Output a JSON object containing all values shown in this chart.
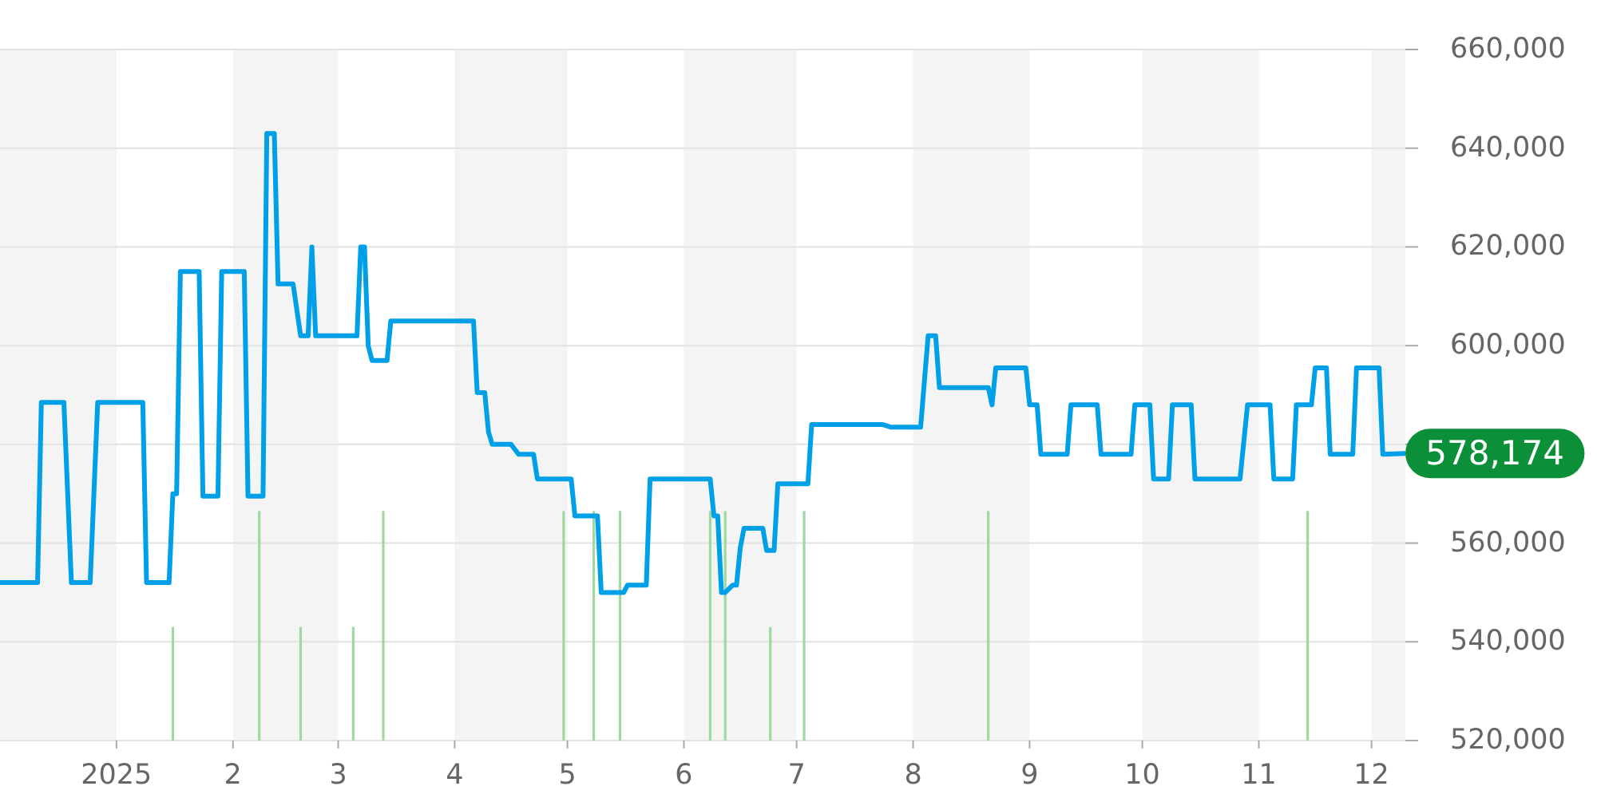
{
  "chart_data": {
    "type": "line",
    "xlim": [
      "2024-12-01",
      "2025-12-10"
    ],
    "ylim": [
      520000,
      660000
    ],
    "xticks": [
      {
        "value": "2025-01-01",
        "label": "2025"
      },
      {
        "value": "2025-02-01",
        "label": "2"
      },
      {
        "value": "2025-03-01",
        "label": "3"
      },
      {
        "value": "2025-04-01",
        "label": "4"
      },
      {
        "value": "2025-05-01",
        "label": "5"
      },
      {
        "value": "2025-06-01",
        "label": "6"
      },
      {
        "value": "2025-07-01",
        "label": "7"
      },
      {
        "value": "2025-08-01",
        "label": "8"
      },
      {
        "value": "2025-09-01",
        "label": "9"
      },
      {
        "value": "2025-10-01",
        "label": "10"
      },
      {
        "value": "2025-11-01",
        "label": "11"
      },
      {
        "value": "2025-12-01",
        "label": "12"
      }
    ],
    "yticks": [
      {
        "value": 520000,
        "label": "520,000"
      },
      {
        "value": 540000,
        "label": "540,000"
      },
      {
        "value": 560000,
        "label": "560,000"
      },
      {
        "value": 580000,
        "label": null
      },
      {
        "value": 600000,
        "label": "600,000"
      },
      {
        "value": 620000,
        "label": "620,000"
      },
      {
        "value": 640000,
        "label": "640,000"
      },
      {
        "value": 660000,
        "label": "660,000"
      }
    ],
    "grid": "y",
    "bands": [
      {
        "axis": "x",
        "from": "2024-12-01",
        "to": "2025-01-01",
        "color": "#f4f4f4"
      },
      {
        "axis": "x",
        "from": "2025-02-01",
        "to": "2025-03-01",
        "color": "#f4f4f4"
      },
      {
        "axis": "x",
        "from": "2025-04-01",
        "to": "2025-05-01",
        "color": "#f4f4f4"
      },
      {
        "axis": "x",
        "from": "2025-06-01",
        "to": "2025-07-01",
        "color": "#f4f4f4"
      },
      {
        "axis": "x",
        "from": "2025-08-01",
        "to": "2025-09-01",
        "color": "#f4f4f4"
      },
      {
        "axis": "x",
        "from": "2025-10-01",
        "to": "2025-11-01",
        "color": "#f4f4f4"
      },
      {
        "axis": "x",
        "from": "2025-12-01",
        "to": "2025-12-10",
        "color": "#f4f4f4"
      }
    ],
    "series": [
      {
        "type": "bar",
        "color": "#9fd8a0",
        "x": [
          "2025-01-16",
          "2025-02-08",
          "2025-02-19",
          "2025-03-05",
          "2025-03-13",
          "2025-04-30",
          "2025-05-08",
          "2025-05-15",
          "2025-06-08",
          "2025-06-12",
          "2025-06-24",
          "2025-07-03",
          "2025-08-21",
          "2025-11-14"
        ],
        "values": [
          543000,
          566500,
          543000,
          543000,
          566500,
          566500,
          566500,
          566500,
          566500,
          566500,
          543000,
          566500,
          566500,
          566500
        ]
      },
      {
        "color": "#00a0e9",
        "x": [
          "2024-12-01",
          "2024-12-11",
          "2024-12-12",
          "2024-12-18",
          "2024-12-20",
          "2024-12-25",
          "2024-12-27",
          "2025-01-08",
          "2025-01-09",
          "2025-01-15",
          "2025-01-16",
          "2025-01-17",
          "2025-01-18",
          "2025-01-23",
          "2025-01-24",
          "2025-01-28",
          "2025-01-29",
          "2025-02-04",
          "2025-02-05",
          "2025-02-09",
          "2025-02-10",
          "2025-02-12",
          "2025-02-13",
          "2025-02-17",
          "2025-02-19",
          "2025-02-21",
          "2025-02-22",
          "2025-02-23",
          "2025-03-06",
          "2025-03-07",
          "2025-03-08",
          "2025-03-09",
          "2025-03-10",
          "2025-03-14",
          "2025-03-15",
          "2025-04-06",
          "2025-04-07",
          "2025-04-09",
          "2025-04-10",
          "2025-04-11",
          "2025-04-16",
          "2025-04-18",
          "2025-04-22",
          "2025-04-23",
          "2025-05-02",
          "2025-05-03",
          "2025-05-09",
          "2025-05-10",
          "2025-05-16",
          "2025-05-17",
          "2025-05-22",
          "2025-05-23",
          "2025-06-08",
          "2025-06-09",
          "2025-06-10",
          "2025-06-11",
          "2025-06-12",
          "2025-06-14",
          "2025-06-15",
          "2025-06-16",
          "2025-06-17",
          "2025-06-22",
          "2025-06-23",
          "2025-06-25",
          "2025-06-26",
          "2025-07-04",
          "2025-07-05",
          "2025-07-24",
          "2025-07-26",
          "2025-08-03",
          "2025-08-05",
          "2025-08-07",
          "2025-08-08",
          "2025-08-21",
          "2025-08-22",
          "2025-08-23",
          "2025-08-31",
          "2025-09-01",
          "2025-09-03",
          "2025-09-04",
          "2025-09-11",
          "2025-09-12",
          "2025-09-19",
          "2025-09-20",
          "2025-09-28",
          "2025-09-29",
          "2025-10-03",
          "2025-10-04",
          "2025-10-08",
          "2025-10-09",
          "2025-10-14",
          "2025-10-15",
          "2025-10-27",
          "2025-10-29",
          "2025-11-04",
          "2025-11-05",
          "2025-11-10",
          "2025-11-11",
          "2025-11-15",
          "2025-11-16",
          "2025-11-19",
          "2025-11-20",
          "2025-11-26",
          "2025-11-27",
          "2025-12-03",
          "2025-12-04",
          "2025-12-10"
        ],
        "values": [
          552000,
          552000,
          588500,
          588500,
          552000,
          552000,
          588500,
          588500,
          552000,
          552000,
          570000,
          570000,
          615000,
          615000,
          569500,
          569500,
          615000,
          615000,
          569500,
          569500,
          643000,
          643000,
          612500,
          612500,
          602000,
          602000,
          620000,
          602000,
          602000,
          620000,
          620000,
          600000,
          597000,
          597000,
          605000,
          605000,
          590500,
          590500,
          582500,
          580000,
          580000,
          578000,
          578000,
          573000,
          573000,
          565500,
          565500,
          550000,
          550000,
          551500,
          551500,
          573000,
          573000,
          565500,
          565500,
          550000,
          550000,
          551500,
          551500,
          559000,
          563000,
          563000,
          558500,
          558500,
          572000,
          572000,
          584000,
          584000,
          583500,
          583500,
          602000,
          602000,
          591500,
          591500,
          588000,
          595500,
          595500,
          588000,
          588000,
          578000,
          578000,
          588000,
          588000,
          578000,
          578000,
          588000,
          588000,
          573000,
          573000,
          588000,
          588000,
          573000,
          573000,
          588000,
          588000,
          573000,
          573000,
          588000,
          588000,
          595500,
          595500,
          578000,
          578000,
          595500,
          595500,
          578000,
          578174
        ],
        "value_labels": [
          null,
          null,
          null,
          null,
          null,
          null,
          null,
          null,
          null,
          null,
          null,
          null,
          null,
          null,
          null,
          null,
          null,
          null,
          null,
          null,
          null,
          null,
          null,
          null,
          null,
          null,
          null,
          null,
          null,
          null,
          null,
          null,
          null,
          null,
          null,
          null,
          null,
          null,
          null,
          null,
          null,
          null,
          null,
          null,
          null,
          null,
          null,
          null,
          null,
          null,
          null,
          null,
          null,
          null,
          null,
          null,
          null,
          null,
          null,
          null,
          null,
          null,
          null,
          null,
          null,
          null,
          null,
          null,
          null,
          null,
          null,
          null,
          null,
          null,
          null,
          null,
          null,
          null,
          null,
          null,
          null,
          null,
          null,
          null,
          null,
          null,
          null,
          null,
          null,
          null,
          null,
          null,
          null,
          null,
          null,
          null,
          null,
          null,
          null,
          null,
          null,
          null,
          null,
          null,
          null,
          null,
          "578,174"
        ]
      }
    ]
  }
}
